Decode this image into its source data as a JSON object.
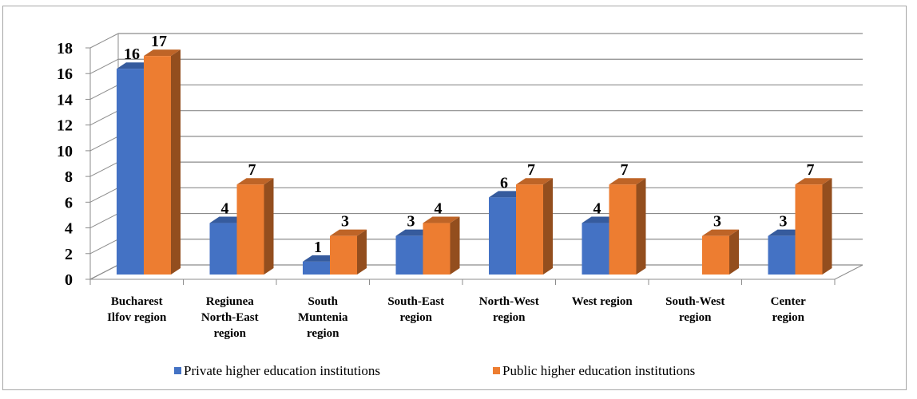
{
  "chart_data": {
    "type": "bar",
    "title": "",
    "xlabel": "",
    "ylabel": "",
    "ylim": [
      0,
      18
    ],
    "yticks": [
      "0",
      "2",
      "4",
      "6",
      "8",
      "10",
      "12",
      "14",
      "16",
      "18"
    ],
    "grid": true,
    "legend_position": "bottom",
    "style": "3d-clustered-column",
    "categories": [
      [
        "Bucharest",
        "Ilfov region"
      ],
      [
        "Regiunea",
        "North-East",
        "region"
      ],
      [
        "South",
        "Muntenia",
        "region"
      ],
      [
        "South-East",
        "region"
      ],
      [
        "North-West",
        "region"
      ],
      [
        "West region"
      ],
      [
        "South-West",
        "region"
      ],
      [
        "Center",
        "region"
      ]
    ],
    "series": [
      {
        "name": "Private higher education institutions",
        "color": "#4472c4",
        "values": [
          16,
          4,
          1,
          3,
          6,
          4,
          null,
          3
        ]
      },
      {
        "name": "Public higher education institutions",
        "color": "#ed7d31",
        "values": [
          17,
          7,
          3,
          4,
          7,
          7,
          3,
          7
        ]
      }
    ]
  }
}
